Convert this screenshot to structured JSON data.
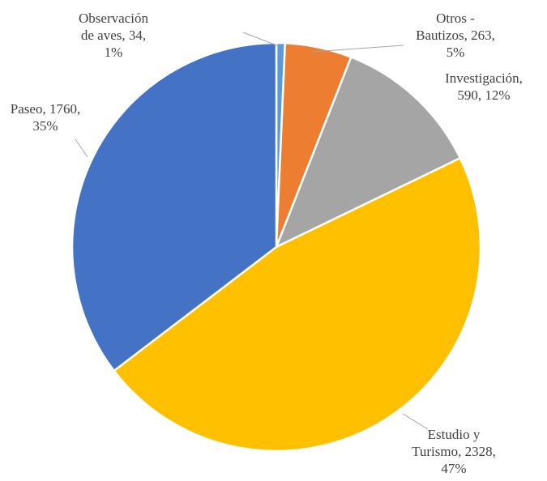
{
  "chart_data": {
    "type": "pie",
    "title": "",
    "legend": "none",
    "slices": [
      {
        "name": "Observación de aves",
        "value": 34,
        "percent": "1%",
        "color": "#5b9bd5",
        "label_lines": [
          "Observación",
          "de aves, 34,",
          "1%"
        ]
      },
      {
        "name": "Otros - Bautizos",
        "value": 263,
        "percent": "5%",
        "color": "#ed7d31",
        "label_lines": [
          "Otros -",
          "Bautizos, 263,",
          "5%"
        ]
      },
      {
        "name": "Investigación",
        "value": 590,
        "percent": "12%",
        "color": "#a5a5a5",
        "label_lines": [
          "Investigación,",
          "590, 12%"
        ]
      },
      {
        "name": "Estudio y Turismo",
        "value": 2328,
        "percent": "47%",
        "color": "#ffc000",
        "label_lines": [
          "Estudio y",
          "Turismo, 2328,",
          "47%"
        ]
      },
      {
        "name": "Paseo",
        "value": 1760,
        "percent": "35%",
        "color": "#4472c4",
        "label_lines": [
          "Paseo, 1760,",
          "35%"
        ]
      }
    ]
  }
}
